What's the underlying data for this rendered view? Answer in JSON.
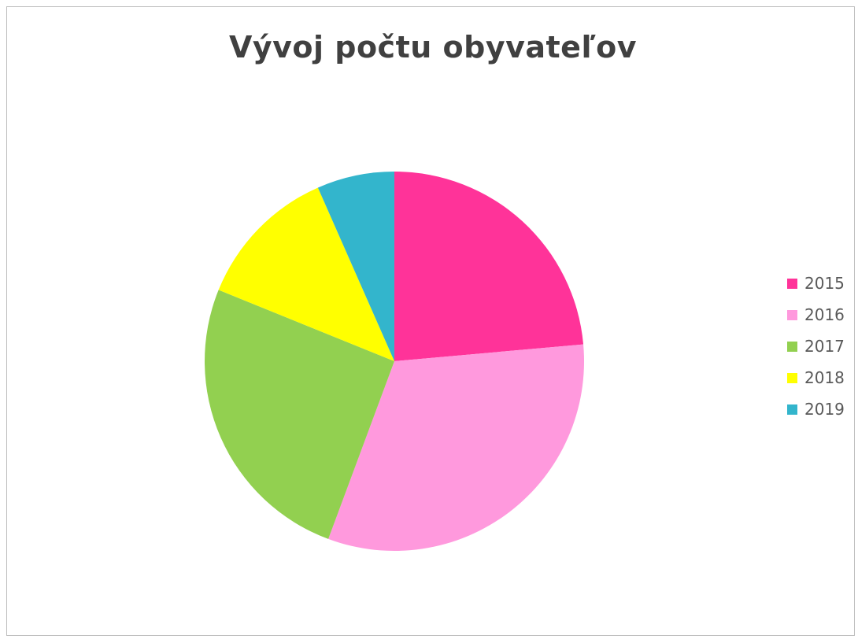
{
  "chart_data": {
    "type": "pie",
    "title": "Vývoj počtu obyvateľov",
    "categories": [
      "2015",
      "2016",
      "2017",
      "2018",
      "2019"
    ],
    "values": [
      25,
      34,
      27,
      13,
      7
    ],
    "colors": [
      "#ff3399",
      "#ff99dd",
      "#92d050",
      "#ffff00",
      "#33b5cc"
    ],
    "legend_position": "right",
    "start_angle_deg": 0,
    "direction": "clockwise"
  }
}
